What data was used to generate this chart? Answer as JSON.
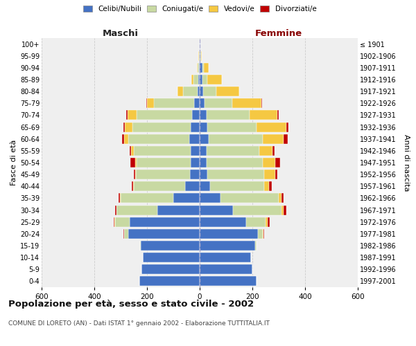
{
  "age_groups": [
    "0-4",
    "5-9",
    "10-14",
    "15-19",
    "20-24",
    "25-29",
    "30-34",
    "35-39",
    "40-44",
    "45-49",
    "50-54",
    "55-59",
    "60-64",
    "65-69",
    "70-74",
    "75-79",
    "80-84",
    "85-89",
    "90-94",
    "95-99",
    "100+"
  ],
  "birth_years": [
    "1997-2001",
    "1992-1996",
    "1987-1991",
    "1982-1986",
    "1977-1981",
    "1972-1976",
    "1967-1971",
    "1962-1966",
    "1957-1961",
    "1952-1956",
    "1947-1951",
    "1942-1946",
    "1937-1941",
    "1932-1936",
    "1927-1931",
    "1922-1926",
    "1917-1921",
    "1912-1916",
    "1907-1911",
    "1902-1906",
    "≤ 1901"
  ],
  "males_celibi": [
    230,
    220,
    215,
    225,
    270,
    265,
    160,
    100,
    55,
    38,
    35,
    35,
    40,
    35,
    30,
    20,
    8,
    5,
    2,
    1,
    1
  ],
  "males_coniugati": [
    0,
    0,
    0,
    2,
    18,
    55,
    155,
    200,
    195,
    205,
    205,
    215,
    230,
    220,
    210,
    155,
    55,
    18,
    5,
    2,
    0
  ],
  "males_vedovi": [
    0,
    0,
    0,
    0,
    0,
    3,
    2,
    2,
    2,
    3,
    5,
    10,
    18,
    30,
    35,
    25,
    20,
    8,
    4,
    1,
    0
  ],
  "males_divorziati": [
    0,
    0,
    0,
    0,
    2,
    3,
    5,
    5,
    5,
    5,
    18,
    5,
    8,
    5,
    5,
    3,
    0,
    0,
    0,
    0,
    0
  ],
  "females_nubili": [
    215,
    200,
    195,
    210,
    220,
    175,
    125,
    80,
    40,
    30,
    25,
    25,
    35,
    30,
    25,
    18,
    12,
    10,
    10,
    3,
    2
  ],
  "females_coniugate": [
    0,
    0,
    0,
    5,
    20,
    75,
    185,
    220,
    205,
    215,
    215,
    200,
    205,
    185,
    165,
    105,
    52,
    20,
    5,
    1,
    0
  ],
  "females_vedove": [
    0,
    0,
    0,
    0,
    2,
    8,
    8,
    10,
    18,
    42,
    48,
    52,
    78,
    115,
    105,
    110,
    85,
    55,
    20,
    3,
    0
  ],
  "females_divorziate": [
    0,
    0,
    0,
    0,
    2,
    8,
    10,
    8,
    10,
    8,
    18,
    8,
    15,
    8,
    5,
    3,
    2,
    0,
    0,
    0,
    0
  ],
  "color_celibe": "#4472c4",
  "color_coniugato": "#c8d9a2",
  "color_vedovo": "#f5c842",
  "color_divorziato": "#c00000",
  "title": "Popolazione per età, sesso e stato civile - 2002",
  "subtitle": "COMUNE DI LORETO (AN) - Dati ISTAT 1° gennaio 2002 - Elaborazione TUTTITALIA.IT",
  "label_maschi": "Maschi",
  "label_femmine": "Femmine",
  "ylabel_left": "Fasce di età",
  "ylabel_right": "Anni di nascita",
  "legend_labels": [
    "Celibi/Nubili",
    "Coniugati/e",
    "Vedovi/e",
    "Divorziati/e"
  ],
  "xlim": 600,
  "bg_plot": "#efefef",
  "bg_fig": "#ffffff"
}
